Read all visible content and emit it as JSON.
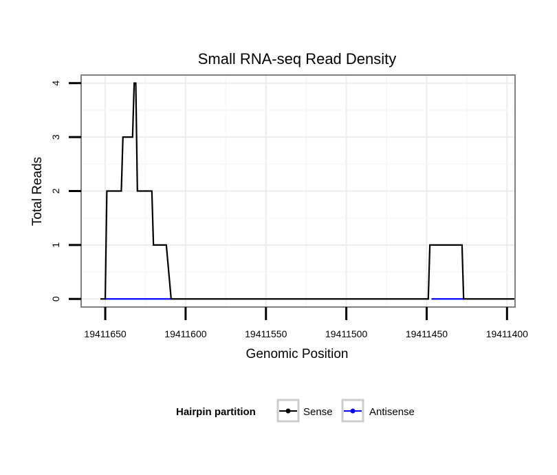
{
  "chart_data": {
    "type": "line",
    "title": "Small RNA-seq Read Density",
    "xlabel": "Genomic Position",
    "ylabel": "Total Reads",
    "xlim": [
      19411665,
      19411395
    ],
    "ylim": [
      -0.15,
      4.15
    ],
    "x_reversed": true,
    "grid": true,
    "x_ticks": [
      19411650,
      19411600,
      19411550,
      19411500,
      19411450,
      19411400
    ],
    "x_tick_labels": [
      "19411650",
      "19411600",
      "19411550",
      "19411500",
      "19411450",
      "19411400"
    ],
    "y_ticks": [
      0,
      1,
      2,
      3,
      4
    ],
    "y_tick_labels": [
      "0",
      "1",
      "2",
      "3",
      "4"
    ],
    "series": [
      {
        "name": "Sense",
        "color": "#000000",
        "x": [
          19411653,
          19411650,
          19411649,
          19411640,
          19411639,
          19411633,
          19411632,
          19411631,
          19411630,
          19411621,
          19411620,
          19411612,
          19411609,
          19411606,
          19411449,
          19411448,
          19411447,
          19411428,
          19411427,
          19411395
        ],
        "y": [
          0,
          0,
          2,
          2,
          3,
          3,
          4,
          4,
          2,
          2,
          1,
          1,
          0,
          0,
          0,
          1,
          1,
          1,
          0,
          0
        ]
      },
      {
        "name": "Antisense",
        "color": "#0000ff",
        "x": [
          19411650,
          19411609,
          19411447,
          19411427
        ],
        "y": [
          0,
          0,
          0,
          0
        ],
        "segments": [
          [
            0,
            1
          ],
          [
            2,
            3
          ]
        ]
      }
    ],
    "legend": {
      "title": "Hairpin partition",
      "position": "bottom",
      "entries": [
        "Sense",
        "Antisense"
      ]
    }
  }
}
